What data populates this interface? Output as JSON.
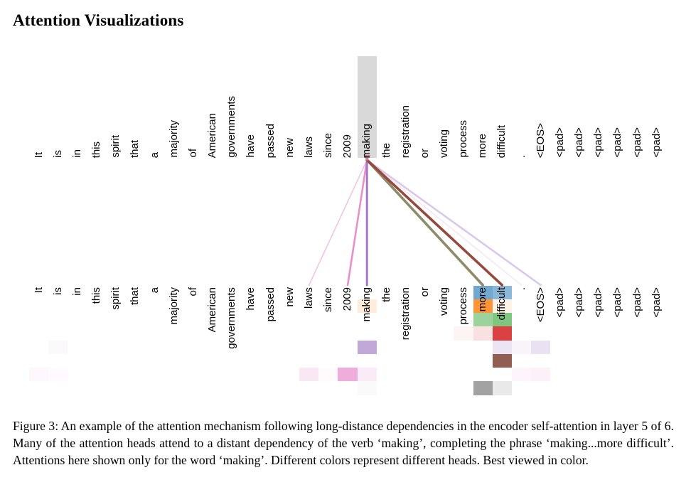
{
  "page_title": "Attention Visualizations",
  "caption": "Figure 3: An example of the attention mechanism following long-distance dependencies in the encoder self-attention in layer 5 of 6. Many of the attention heads attend to a distant dependency of the verb ‘making’, completing the phrase ‘making...more difficult’. Attentions here shown only for the word ‘making’. Different colors represent different heads. Best viewed in color.",
  "chart_data": {
    "type": "heatmap",
    "title": "Encoder self-attention weights from the query word 'making' (layer 5 of 6, 8 heads)",
    "tokens": [
      "It",
      "is",
      "in",
      "this",
      "spirit",
      "that",
      "a",
      "majority",
      "of",
      "American",
      "governments",
      "have",
      "passed",
      "new",
      "laws",
      "since",
      "2009",
      "making",
      "the",
      "registration",
      "or",
      "voting",
      "process",
      "more",
      "difficult",
      ".",
      "<EOS>",
      "<pad>",
      "<pad>",
      "<pad>",
      "<pad>",
      "<pad>",
      "<pad>"
    ],
    "query_token": "making",
    "query_token_index": 17,
    "highlight_color": "#d9d9d9",
    "num_heads": 8,
    "head_colors": [
      "#1f77b4",
      "#ff7f0e",
      "#2ca02c",
      "#d62728",
      "#9467bd",
      "#8c564b",
      "#e377c2",
      "#7f7f7f"
    ],
    "attention_cells": [
      {
        "token": 0,
        "head": 6,
        "weight": 0.05
      },
      {
        "token": 1,
        "head": 4,
        "weight": 0.04
      },
      {
        "token": 1,
        "head": 6,
        "weight": 0.04
      },
      {
        "token": 14,
        "head": 6,
        "weight": 0.18
      },
      {
        "token": 15,
        "head": 6,
        "weight": 0.03
      },
      {
        "token": 16,
        "head": 6,
        "weight": 0.6
      },
      {
        "token": 17,
        "head": 1,
        "weight": 0.15
      },
      {
        "token": 17,
        "head": 4,
        "weight": 0.57
      },
      {
        "token": 17,
        "head": 6,
        "weight": 0.15
      },
      {
        "token": 17,
        "head": 7,
        "weight": 0.04
      },
      {
        "token": 22,
        "head": 3,
        "weight": 0.05
      },
      {
        "token": 23,
        "head": 0,
        "weight": 0.64
      },
      {
        "token": 23,
        "head": 1,
        "weight": 0.83
      },
      {
        "token": 23,
        "head": 2,
        "weight": 0.47
      },
      {
        "token": 23,
        "head": 3,
        "weight": 0.14
      },
      {
        "token": 23,
        "head": 7,
        "weight": 0.73
      },
      {
        "token": 24,
        "head": 0,
        "weight": 0.52
      },
      {
        "token": 24,
        "head": 1,
        "weight": 0.1
      },
      {
        "token": 24,
        "head": 2,
        "weight": 0.6
      },
      {
        "token": 24,
        "head": 3,
        "weight": 0.88
      },
      {
        "token": 24,
        "head": 4,
        "weight": 0.18
      },
      {
        "token": 24,
        "head": 5,
        "weight": 0.95
      },
      {
        "token": 24,
        "head": 7,
        "weight": 0.17
      },
      {
        "token": 25,
        "head": 4,
        "weight": 0.07
      },
      {
        "token": 25,
        "head": 6,
        "weight": 0.07
      },
      {
        "token": 26,
        "head": 4,
        "weight": 0.2
      },
      {
        "token": 26,
        "head": 6,
        "weight": 0.1
      }
    ],
    "attention_lines": [
      {
        "target_token": 25,
        "color": "#f3e8f4",
        "width": 1.6
      },
      {
        "target_token": 14,
        "color": "#f2c4e2",
        "width": 1.6
      },
      {
        "target_token": 26,
        "color": "#dcc7ec",
        "width": 2.6
      },
      {
        "target_token": 16,
        "color": "#e98fc9",
        "width": 2.6
      },
      {
        "target_token": 17,
        "color": "#a778c9",
        "width": 3.0
      },
      {
        "target_token": 23,
        "color": "#8f8a68",
        "width": 3.6
      },
      {
        "target_token": 24,
        "color": "#96493c",
        "width": 3.6
      }
    ],
    "origin_marker_color": "#c9849f"
  }
}
